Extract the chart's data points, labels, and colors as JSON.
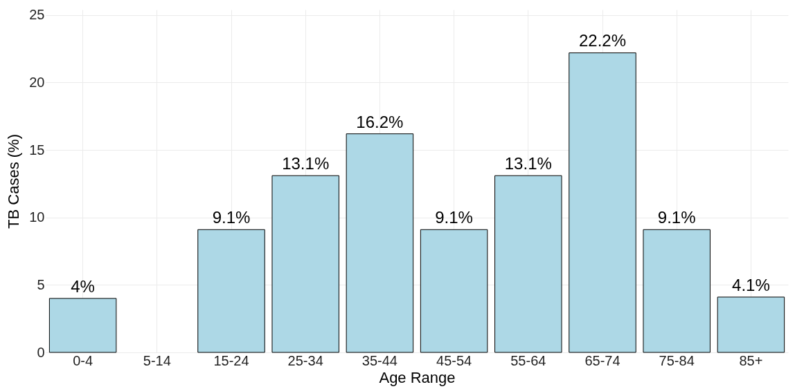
{
  "chart_data": {
    "type": "bar",
    "xlabel": "Age Range",
    "ylabel": "TB Cases (%)",
    "categories": [
      "0-4",
      "5-14",
      "15-24",
      "25-34",
      "35-44",
      "45-54",
      "55-64",
      "65-74",
      "75-84",
      "85+"
    ],
    "values": [
      4,
      null,
      9.1,
      13.1,
      16.2,
      9.1,
      13.1,
      22.2,
      9.1,
      4.1
    ],
    "value_labels": [
      "4%",
      null,
      "9.1%",
      "13.1%",
      "16.2%",
      "9.1%",
      "13.1%",
      "22.2%",
      "9.1%",
      "4.1%"
    ],
    "color": "#add8e6",
    "ylim": [
      0,
      25.4
    ],
    "yticks": [
      0,
      5,
      10,
      15,
      20,
      25
    ],
    "grid": true
  }
}
